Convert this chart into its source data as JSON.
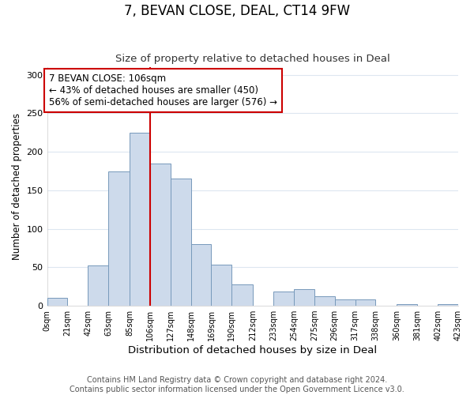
{
  "title": "7, BEVAN CLOSE, DEAL, CT14 9FW",
  "subtitle": "Size of property relative to detached houses in Deal",
  "xlabel": "Distribution of detached houses by size in Deal",
  "ylabel": "Number of detached properties",
  "bar_color": "#cddaeb",
  "bar_edge_color": "#7799bb",
  "tick_labels": [
    "0sqm",
    "21sqm",
    "42sqm",
    "63sqm",
    "85sqm",
    "106sqm",
    "127sqm",
    "148sqm",
    "169sqm",
    "190sqm",
    "212sqm",
    "233sqm",
    "254sqm",
    "275sqm",
    "296sqm",
    "317sqm",
    "338sqm",
    "360sqm",
    "381sqm",
    "402sqm",
    "423sqm"
  ],
  "bin_edges": [
    0,
    21,
    42,
    63,
    85,
    106,
    127,
    148,
    169,
    190,
    212,
    233,
    254,
    275,
    296,
    317,
    338,
    360,
    381,
    402,
    423
  ],
  "bar_heights": [
    10,
    0,
    52,
    175,
    225,
    185,
    165,
    80,
    53,
    28,
    0,
    19,
    22,
    12,
    8,
    8,
    0,
    2,
    0,
    2
  ],
  "ylim": [
    0,
    310
  ],
  "yticks": [
    0,
    50,
    100,
    150,
    200,
    250,
    300
  ],
  "vline_x": 106,
  "vline_color": "#cc0000",
  "annotation_text": "7 BEVAN CLOSE: 106sqm\n← 43% of detached houses are smaller (450)\n56% of semi-detached houses are larger (576) →",
  "annotation_box_edge_color": "#cc0000",
  "annotation_box_face_color": "#ffffff",
  "footer_text": "Contains HM Land Registry data © Crown copyright and database right 2024.\nContains public sector information licensed under the Open Government Licence v3.0.",
  "background_color": "#ffffff",
  "grid_color": "#dde6f0",
  "title_fontsize": 12,
  "subtitle_fontsize": 9.5,
  "xlabel_fontsize": 9.5,
  "ylabel_fontsize": 8.5,
  "annotation_fontsize": 8.5,
  "footer_fontsize": 7
}
